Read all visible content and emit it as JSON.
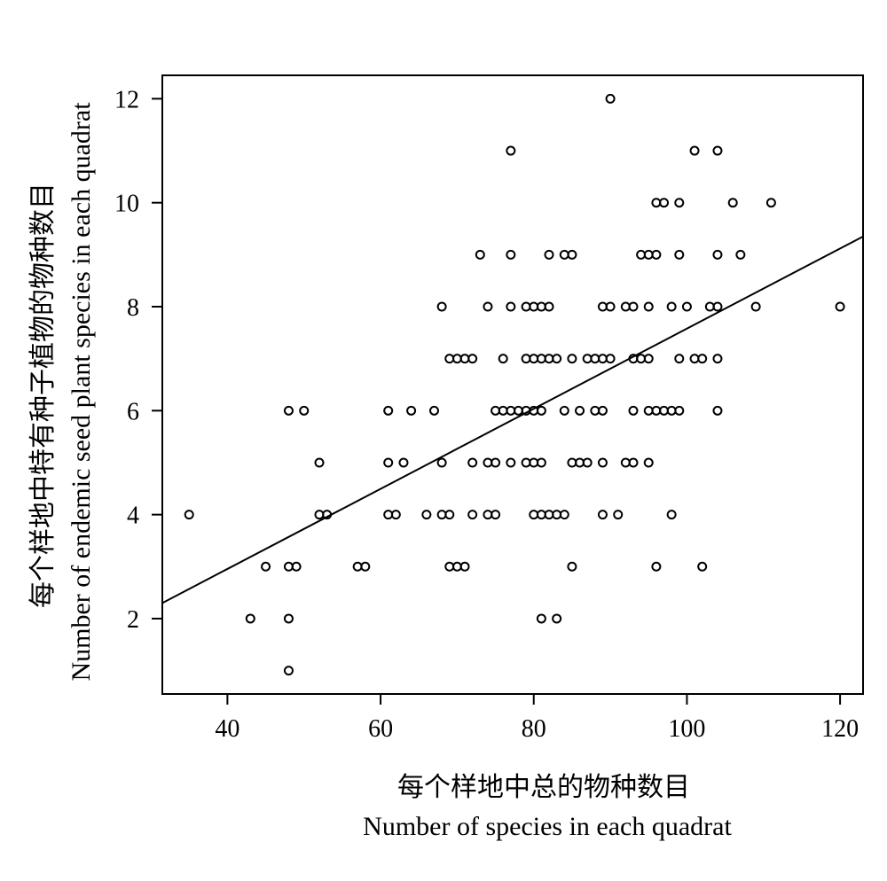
{
  "chart_data": {
    "type": "scatter",
    "xlabel_cn": "每个样地中总的物种数目",
    "xlabel_en": "Number of species in each quadrat",
    "ylabel_cn": "每个样地中特有种子植物的物种数目",
    "ylabel_en": "Number of endemic seed plant species in each quadrat",
    "xlim": [
      31.5,
      123
    ],
    "ylim": [
      0.55,
      12.45
    ],
    "x_ticks": [
      40,
      60,
      80,
      100,
      120
    ],
    "y_ticks": [
      2,
      4,
      6,
      8,
      10,
      12
    ],
    "x_tick_labels": [
      "40",
      "60",
      "80",
      "100",
      "120"
    ],
    "y_tick_labels": [
      "2",
      "4",
      "6",
      "8",
      "10",
      "12"
    ],
    "regression_line": {
      "x": [
        31.5,
        123
      ],
      "y": [
        2.3,
        9.35
      ]
    },
    "marker": "open-circle",
    "grid": false,
    "points": [
      [
        35,
        4
      ],
      [
        43,
        2
      ],
      [
        45,
        3
      ],
      [
        48,
        1
      ],
      [
        48,
        2
      ],
      [
        48,
        3
      ],
      [
        48,
        6
      ],
      [
        49,
        3
      ],
      [
        50,
        6
      ],
      [
        52,
        5
      ],
      [
        52,
        4
      ],
      [
        53,
        4
      ],
      [
        57,
        3
      ],
      [
        58,
        3
      ],
      [
        61,
        6
      ],
      [
        61,
        5
      ],
      [
        61,
        4
      ],
      [
        62,
        4
      ],
      [
        63,
        5
      ],
      [
        64,
        6
      ],
      [
        66,
        4
      ],
      [
        67,
        6
      ],
      [
        68,
        8
      ],
      [
        68,
        5
      ],
      [
        68,
        4
      ],
      [
        69,
        4
      ],
      [
        69,
        3
      ],
      [
        69,
        7
      ],
      [
        70,
        7
      ],
      [
        70,
        3
      ],
      [
        71,
        7
      ],
      [
        71,
        3
      ],
      [
        72,
        7
      ],
      [
        72,
        5
      ],
      [
        72,
        4
      ],
      [
        73,
        9
      ],
      [
        74,
        8
      ],
      [
        74,
        5
      ],
      [
        74,
        4
      ],
      [
        75,
        5
      ],
      [
        75,
        4
      ],
      [
        75,
        6
      ],
      [
        76,
        7
      ],
      [
        76,
        6
      ],
      [
        77,
        11
      ],
      [
        77,
        9
      ],
      [
        77,
        8
      ],
      [
        77,
        6
      ],
      [
        77,
        5
      ],
      [
        78,
        6
      ],
      [
        79,
        8
      ],
      [
        79,
        7
      ],
      [
        79,
        6
      ],
      [
        79,
        5
      ],
      [
        80,
        8
      ],
      [
        80,
        7
      ],
      [
        80,
        6
      ],
      [
        80,
        5
      ],
      [
        80,
        4
      ],
      [
        81,
        8
      ],
      [
        81,
        7
      ],
      [
        81,
        6
      ],
      [
        81,
        5
      ],
      [
        81,
        4
      ],
      [
        81,
        2
      ],
      [
        82,
        9
      ],
      [
        82,
        8
      ],
      [
        82,
        7
      ],
      [
        82,
        4
      ],
      [
        83,
        7
      ],
      [
        83,
        4
      ],
      [
        83,
        2
      ],
      [
        84,
        9
      ],
      [
        84,
        6
      ],
      [
        84,
        4
      ],
      [
        85,
        9
      ],
      [
        85,
        7
      ],
      [
        85,
        5
      ],
      [
        85,
        3
      ],
      [
        86,
        6
      ],
      [
        86,
        5
      ],
      [
        87,
        7
      ],
      [
        87,
        5
      ],
      [
        88,
        7
      ],
      [
        88,
        6
      ],
      [
        89,
        8
      ],
      [
        89,
        7
      ],
      [
        89,
        6
      ],
      [
        89,
        5
      ],
      [
        89,
        4
      ],
      [
        90,
        12
      ],
      [
        90,
        8
      ],
      [
        90,
        7
      ],
      [
        91,
        4
      ],
      [
        92,
        8
      ],
      [
        92,
        5
      ],
      [
        93,
        8
      ],
      [
        93,
        7
      ],
      [
        93,
        6
      ],
      [
        93,
        5
      ],
      [
        94,
        9
      ],
      [
        94,
        7
      ],
      [
        95,
        9
      ],
      [
        95,
        8
      ],
      [
        95,
        7
      ],
      [
        95,
        6
      ],
      [
        95,
        5
      ],
      [
        96,
        10
      ],
      [
        96,
        9
      ],
      [
        96,
        6
      ],
      [
        96,
        3
      ],
      [
        97,
        10
      ],
      [
        97,
        6
      ],
      [
        98,
        8
      ],
      [
        98,
        6
      ],
      [
        98,
        4
      ],
      [
        99,
        10
      ],
      [
        99,
        9
      ],
      [
        99,
        7
      ],
      [
        99,
        6
      ],
      [
        100,
        8
      ],
      [
        101,
        11
      ],
      [
        101,
        7
      ],
      [
        102,
        7
      ],
      [
        102,
        3
      ],
      [
        103,
        8
      ],
      [
        104,
        11
      ],
      [
        104,
        9
      ],
      [
        104,
        8
      ],
      [
        104,
        7
      ],
      [
        104,
        6
      ],
      [
        106,
        10
      ],
      [
        107,
        9
      ],
      [
        109,
        8
      ],
      [
        111,
        10
      ],
      [
        120,
        8
      ]
    ]
  }
}
